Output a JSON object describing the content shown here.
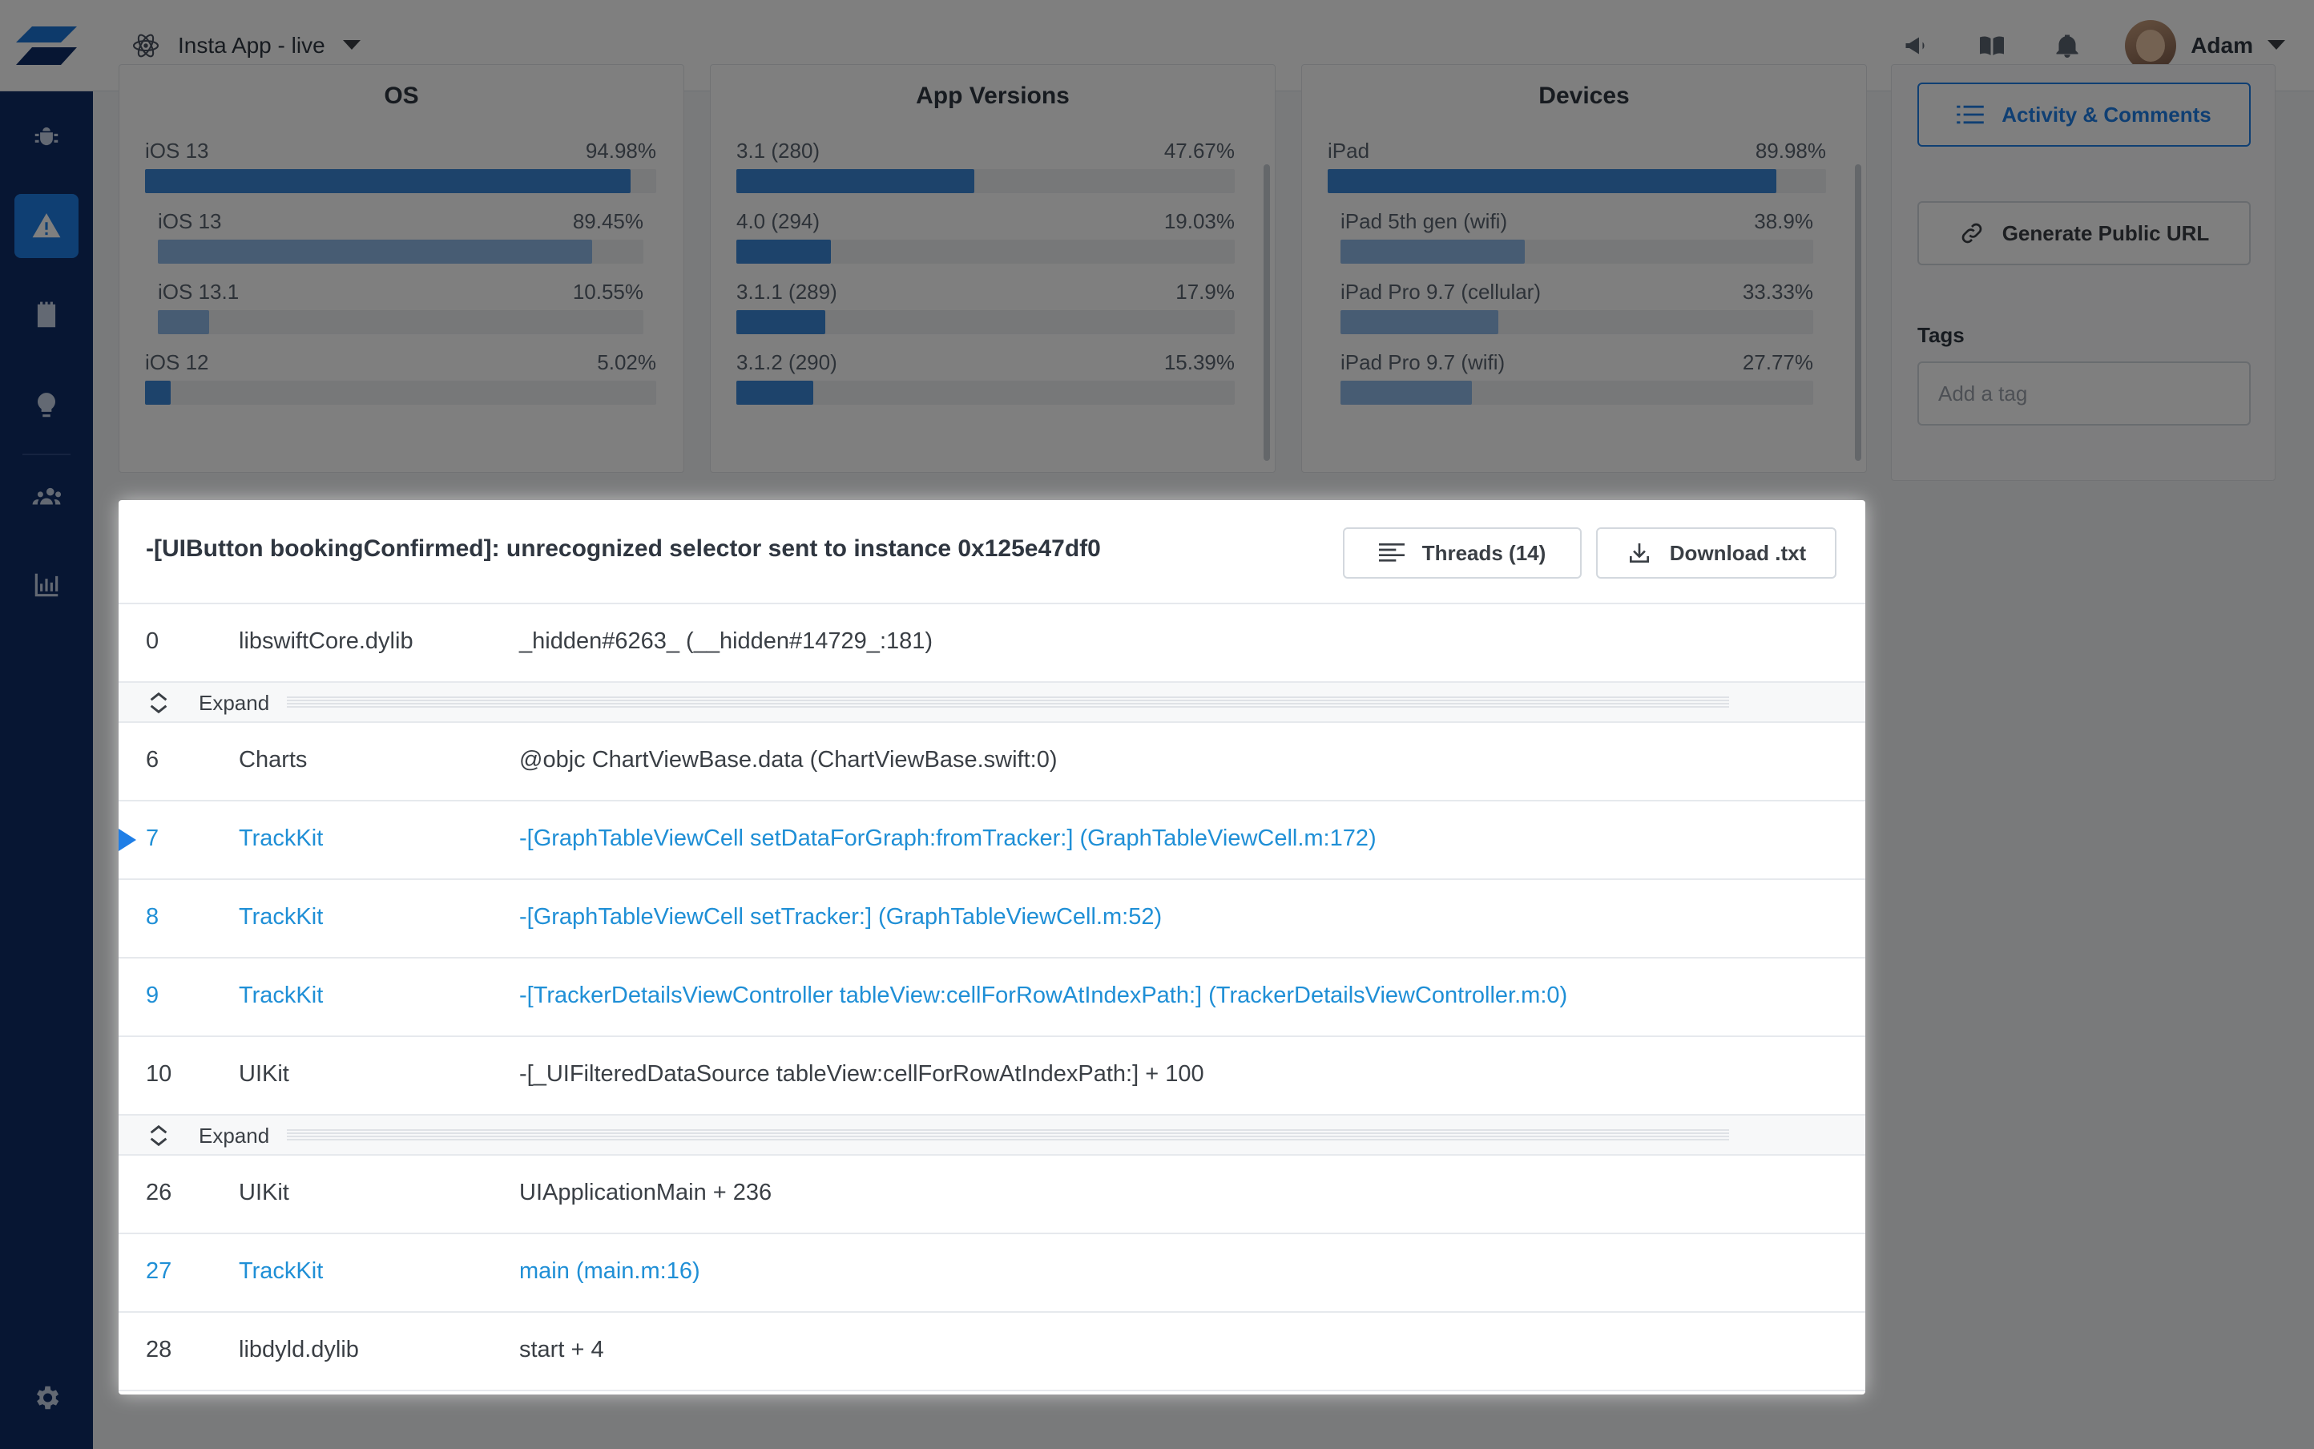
{
  "topbar": {
    "app_name": "Insta App - live",
    "user_name": "Adam"
  },
  "sidebar": {
    "items": [
      {
        "icon": "bug-icon"
      },
      {
        "icon": "warning-icon",
        "active": true
      },
      {
        "icon": "notes-icon"
      },
      {
        "icon": "lightbulb-icon"
      },
      {
        "icon": "team-icon"
      },
      {
        "icon": "bar-chart-icon"
      }
    ],
    "settings_icon": "gear-icon"
  },
  "cards": [
    {
      "title": "OS",
      "rows": [
        {
          "label": "iOS 13",
          "pct": "94.98%",
          "value": 94.98,
          "primary": true
        },
        {
          "label": "iOS 13",
          "pct": "89.45%",
          "value": 89.45,
          "primary": false
        },
        {
          "label": "iOS 13.1",
          "pct": "10.55%",
          "value": 10.55,
          "primary": false
        },
        {
          "label": "iOS 12",
          "pct": "5.02%",
          "value": 5.02,
          "primary": true
        }
      ]
    },
    {
      "title": "App Versions",
      "rows": [
        {
          "label": "3.1 (280)",
          "pct": "47.67%",
          "value": 47.67,
          "primary": true
        },
        {
          "label": "4.0 (294)",
          "pct": "19.03%",
          "value": 19.03,
          "primary": true
        },
        {
          "label": "3.1.1 (289)",
          "pct": "17.9%",
          "value": 17.9,
          "primary": true
        },
        {
          "label": "3.1.2 (290)",
          "pct": "15.39%",
          "value": 15.39,
          "primary": true
        }
      ]
    },
    {
      "title": "Devices",
      "rows": [
        {
          "label": "iPad",
          "pct": "89.98%",
          "value": 89.98,
          "primary": true
        },
        {
          "label": "iPad 5th gen (wifi)",
          "pct": "38.9%",
          "value": 38.9,
          "primary": false
        },
        {
          "label": "iPad Pro 9.7 (cellular)",
          "pct": "33.33%",
          "value": 33.33,
          "primary": false
        },
        {
          "label": "iPad Pro 9.7 (wifi)",
          "pct": "27.77%",
          "value": 27.77,
          "primary": false
        }
      ]
    }
  ],
  "right_panel": {
    "activity_label": "Activity & Comments",
    "public_url_label": "Generate Public URL",
    "tags_label": "Tags",
    "tag_placeholder": "Add a tag"
  },
  "trace": {
    "exception": "-[UIButton bookingConfirmed]: unrecognized selector sent to instance 0x125e47df0",
    "threads_label": "Threads (14)",
    "download_label": "Download .txt",
    "expand_label": "Expand",
    "frames": [
      {
        "num": "0",
        "lib": "libswiftCore.dylib",
        "sym": "_hidden#6263_ (__hidden#14729_:181)",
        "app": false
      },
      {
        "num": "6",
        "lib": "Charts",
        "sym": "@objc ChartViewBase.data (ChartViewBase.swift:0)",
        "app": false
      },
      {
        "num": "7",
        "lib": "TrackKit",
        "sym": "-[GraphTableViewCell setDataForGraph:fromTracker:] (GraphTableViewCell.m:172)",
        "app": true,
        "marked": true
      },
      {
        "num": "8",
        "lib": "TrackKit",
        "sym": "-[GraphTableViewCell setTracker:] (GraphTableViewCell.m:52)",
        "app": true
      },
      {
        "num": "9",
        "lib": "TrackKit",
        "sym": "-[TrackerDetailsViewController tableView:cellForRowAtIndexPath:] (TrackerDetailsViewController.m:0)",
        "app": true
      },
      {
        "num": "10",
        "lib": "UIKit",
        "sym": "-[_UIFilteredDataSource tableView:cellForRowAtIndexPath:] + 100",
        "app": false
      },
      {
        "num": "26",
        "lib": "UIKit",
        "sym": "UIApplicationMain + 236",
        "app": false
      },
      {
        "num": "27",
        "lib": "TrackKit",
        "sym": "main (main.m:16)",
        "app": true
      },
      {
        "num": "28",
        "lib": "libdyld.dylib",
        "sym": "start + 4",
        "app": false
      }
    ]
  },
  "colors": {
    "accent": "#1f7ee6",
    "sidebar": "#0f2c66",
    "app_frame_text": "#1f8fd6",
    "bar_primary": "#3a86d6",
    "bar_secondary": "#8fb9e6"
  }
}
